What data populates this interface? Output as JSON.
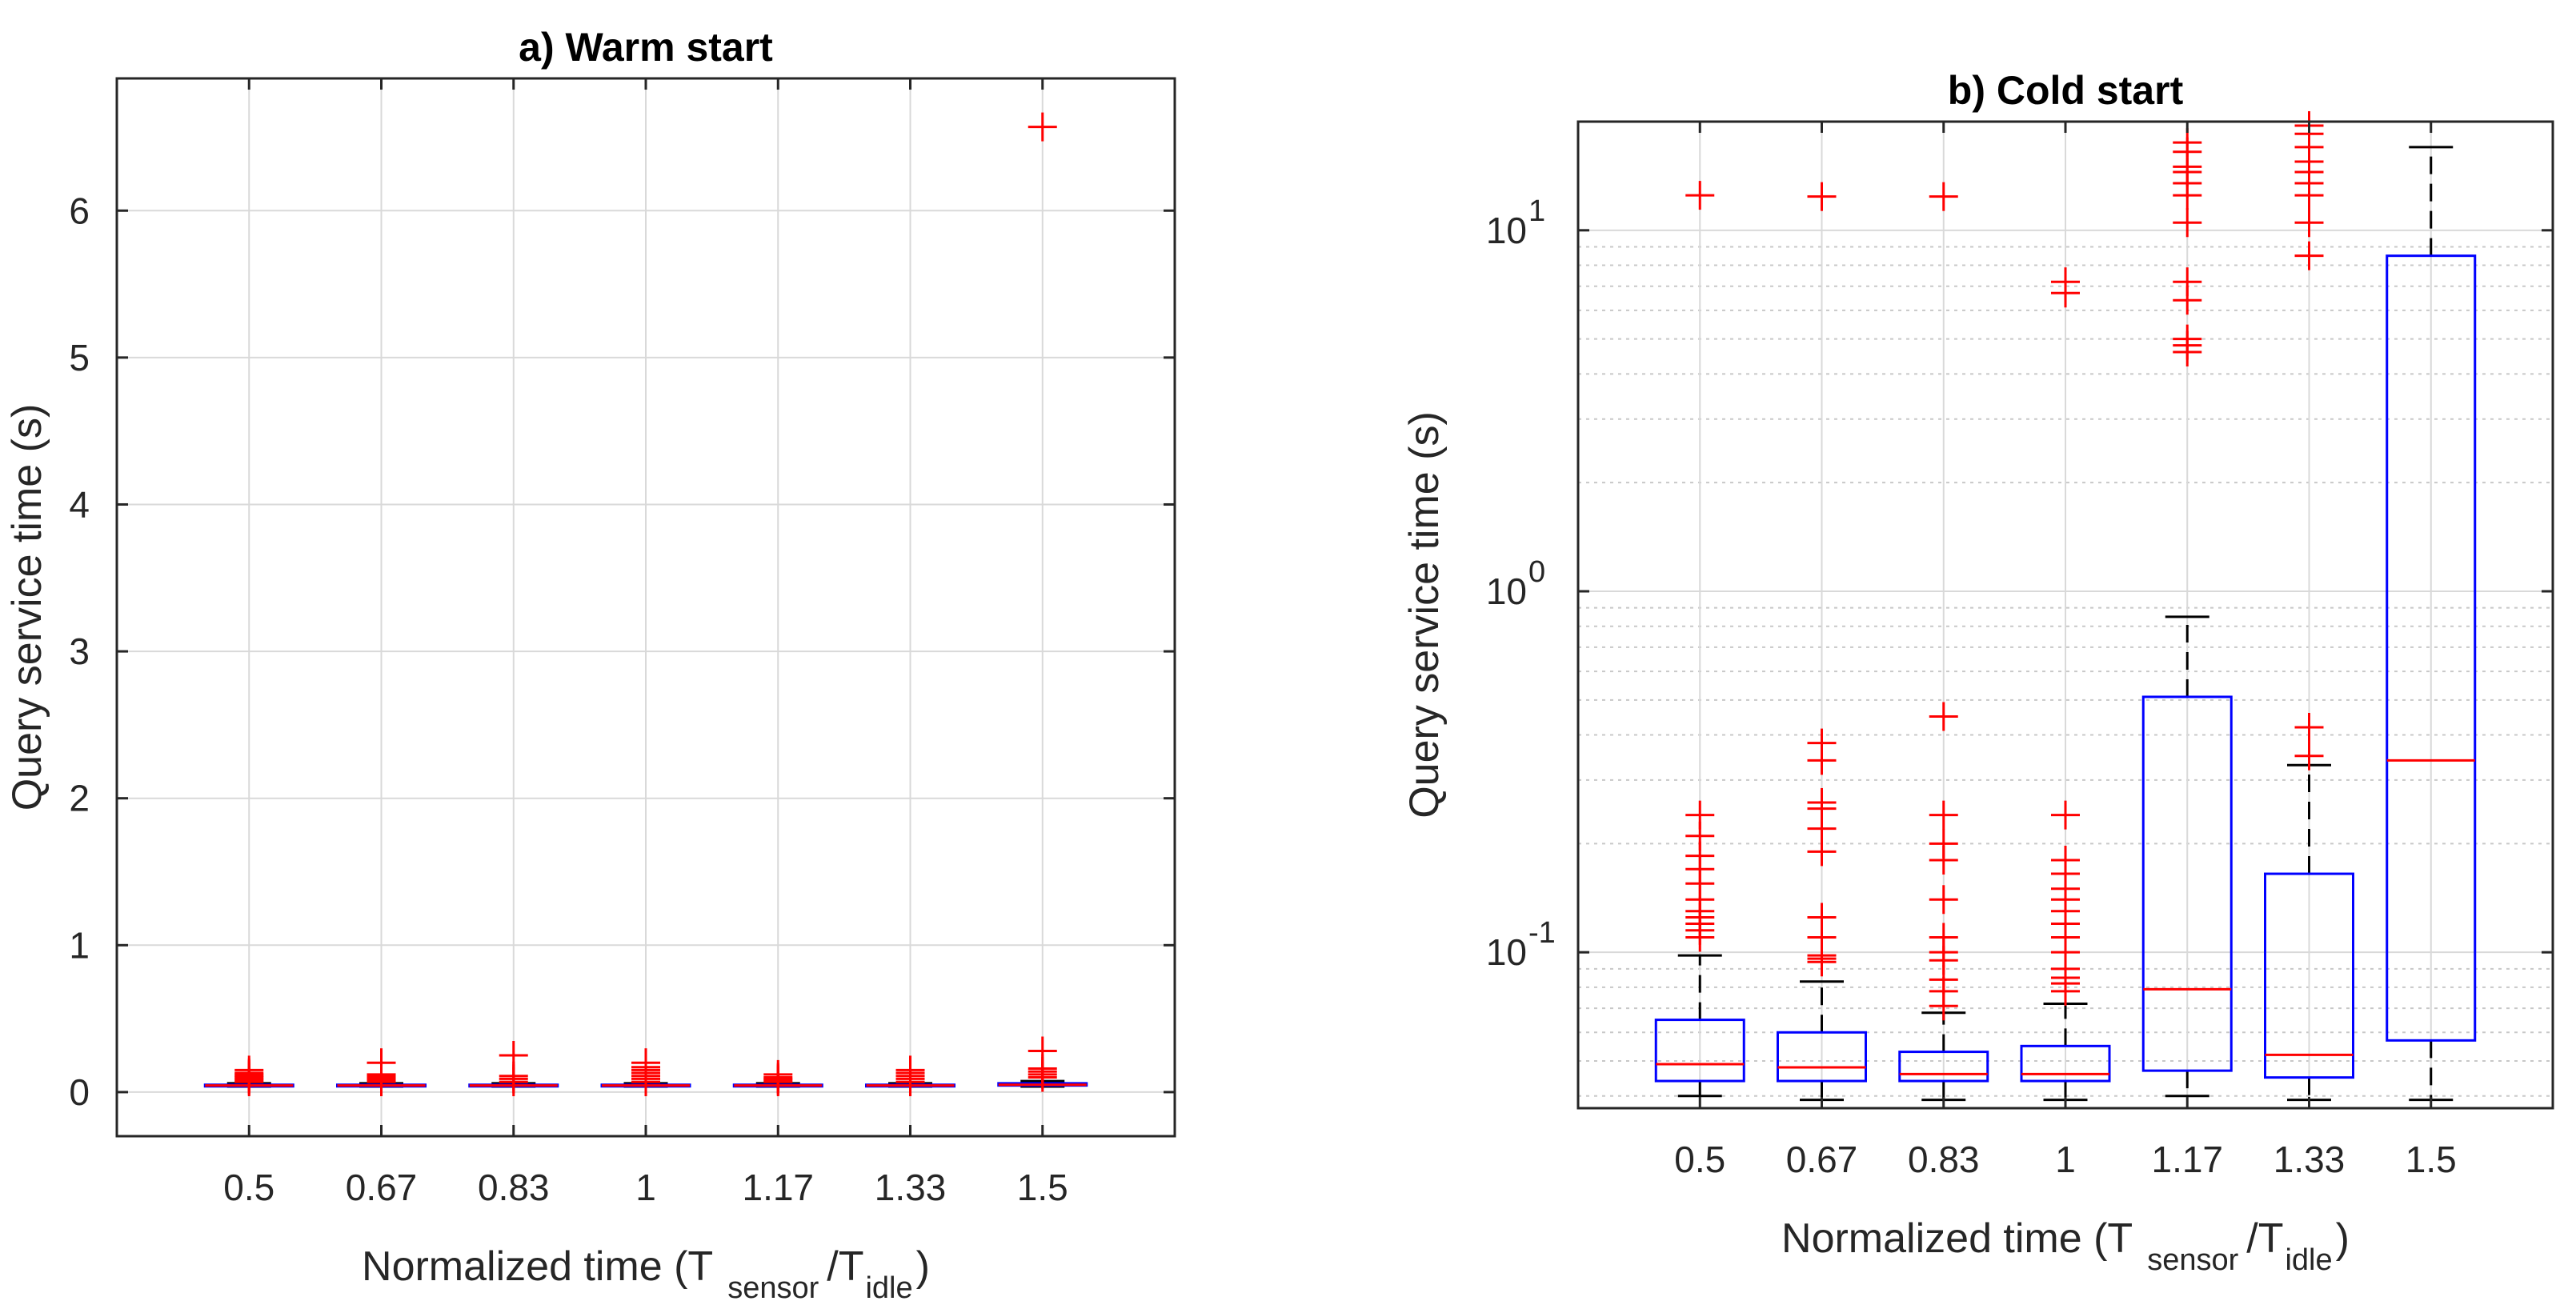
{
  "chart_data": [
    {
      "type": "boxplot",
      "title": "a) Warm start",
      "xlabel": "Normalized time (T",
      "xlabel_sub1": "sensor",
      "xlabel_mid": "/T",
      "xlabel_sub2": "idle",
      "xlabel_end": ")",
      "ylabel": "Query service time (s)",
      "yscale": "linear",
      "ylim": [
        -0.3,
        6.9
      ],
      "yticks": [
        0,
        1,
        2,
        3,
        4,
        5,
        6
      ],
      "ytick_labels": [
        "0",
        "1",
        "2",
        "3",
        "4",
        "5",
        "6"
      ],
      "categories": [
        "0.5",
        "0.67",
        "0.83",
        "1",
        "1.17",
        "1.33",
        "1.5"
      ],
      "boxes": [
        {
          "q1": 0.04,
          "median": 0.045,
          "q3": 0.05,
          "wlo": 0.038,
          "whi": 0.06,
          "outliers": [
            0.07,
            0.08,
            0.09,
            0.1,
            0.11,
            0.12,
            0.13,
            0.15
          ]
        },
        {
          "q1": 0.04,
          "median": 0.045,
          "q3": 0.05,
          "wlo": 0.038,
          "whi": 0.06,
          "outliers": [
            0.07,
            0.08,
            0.09,
            0.1,
            0.11,
            0.12,
            0.2
          ]
        },
        {
          "q1": 0.04,
          "median": 0.045,
          "q3": 0.05,
          "wlo": 0.038,
          "whi": 0.06,
          "outliers": [
            0.07,
            0.09,
            0.11,
            0.25
          ]
        },
        {
          "q1": 0.04,
          "median": 0.045,
          "q3": 0.05,
          "wlo": 0.038,
          "whi": 0.06,
          "outliers": [
            0.07,
            0.09,
            0.11,
            0.13,
            0.15,
            0.17,
            0.2
          ]
        },
        {
          "q1": 0.04,
          "median": 0.045,
          "q3": 0.05,
          "wlo": 0.038,
          "whi": 0.06,
          "outliers": [
            0.07,
            0.08,
            0.09,
            0.1,
            0.12
          ]
        },
        {
          "q1": 0.04,
          "median": 0.045,
          "q3": 0.05,
          "wlo": 0.038,
          "whi": 0.06,
          "outliers": [
            0.07,
            0.09,
            0.11,
            0.13,
            0.15
          ]
        },
        {
          "q1": 0.045,
          "median": 0.05,
          "q3": 0.06,
          "wlo": 0.038,
          "whi": 0.075,
          "outliers": [
            0.1,
            0.12,
            0.14,
            0.16,
            0.28,
            6.57
          ]
        }
      ]
    },
    {
      "type": "boxplot",
      "title": "b) Cold start",
      "xlabel": "Normalized time (T",
      "xlabel_sub1": "sensor",
      "xlabel_mid": "/T",
      "xlabel_sub2": "idle",
      "xlabel_end": ")",
      "ylabel": "Query service time (s)",
      "yscale": "log",
      "ylim": [
        0.037,
        20
      ],
      "yticks": [
        0.1,
        1,
        10
      ],
      "ytick_labels": [
        "10",
        "10",
        "10"
      ],
      "ytick_exponents": [
        "-1",
        "0",
        "1"
      ],
      "categories": [
        "0.5",
        "0.67",
        "0.83",
        "1",
        "1.17",
        "1.33",
        "1.5"
      ],
      "boxes": [
        {
          "q1": 0.044,
          "median": 0.049,
          "q3": 0.065,
          "wlo": 0.04,
          "whi": 0.098,
          "outliers": [
            0.11,
            0.115,
            0.12,
            0.125,
            0.13,
            0.14,
            0.155,
            0.17,
            0.185,
            0.21,
            0.24,
            12.5
          ]
        },
        {
          "q1": 0.044,
          "median": 0.048,
          "q3": 0.06,
          "wlo": 0.039,
          "whi": 0.083,
          "outliers": [
            0.094,
            0.096,
            0.098,
            0.11,
            0.125,
            0.19,
            0.22,
            0.25,
            0.26,
            0.34,
            0.38,
            12.4
          ]
        },
        {
          "q1": 0.044,
          "median": 0.046,
          "q3": 0.053,
          "wlo": 0.039,
          "whi": 0.068,
          "outliers": [
            0.071,
            0.078,
            0.084,
            0.095,
            0.1,
            0.11,
            0.14,
            0.18,
            0.2,
            0.24,
            0.45,
            12.4
          ]
        },
        {
          "q1": 0.044,
          "median": 0.046,
          "q3": 0.055,
          "wlo": 0.039,
          "whi": 0.072,
          "outliers": [
            0.078,
            0.082,
            0.085,
            0.09,
            0.1,
            0.11,
            0.12,
            0.13,
            0.14,
            0.15,
            0.165,
            0.18,
            0.24,
            6.7,
            7.2
          ]
        },
        {
          "q1": 0.047,
          "median": 0.079,
          "q3": 0.51,
          "wlo": 0.04,
          "whi": 0.85,
          "outliers": [
            4.6,
            4.8,
            5.0,
            6.4,
            7.2,
            10.5,
            12.5,
            13.5,
            14.5,
            15.0,
            16.5,
            17.5
          ]
        },
        {
          "q1": 0.045,
          "median": 0.052,
          "q3": 0.165,
          "wlo": 0.039,
          "whi": 0.33,
          "outliers": [
            0.35,
            0.42,
            8.5,
            10.5,
            12.5,
            13.5,
            14.5,
            15.5,
            17.0,
            18.5,
            19.5
          ]
        },
        {
          "q1": 0.057,
          "median": 0.34,
          "q3": 8.5,
          "wlo": 0.039,
          "whi": 17.0,
          "outliers": []
        }
      ]
    }
  ]
}
